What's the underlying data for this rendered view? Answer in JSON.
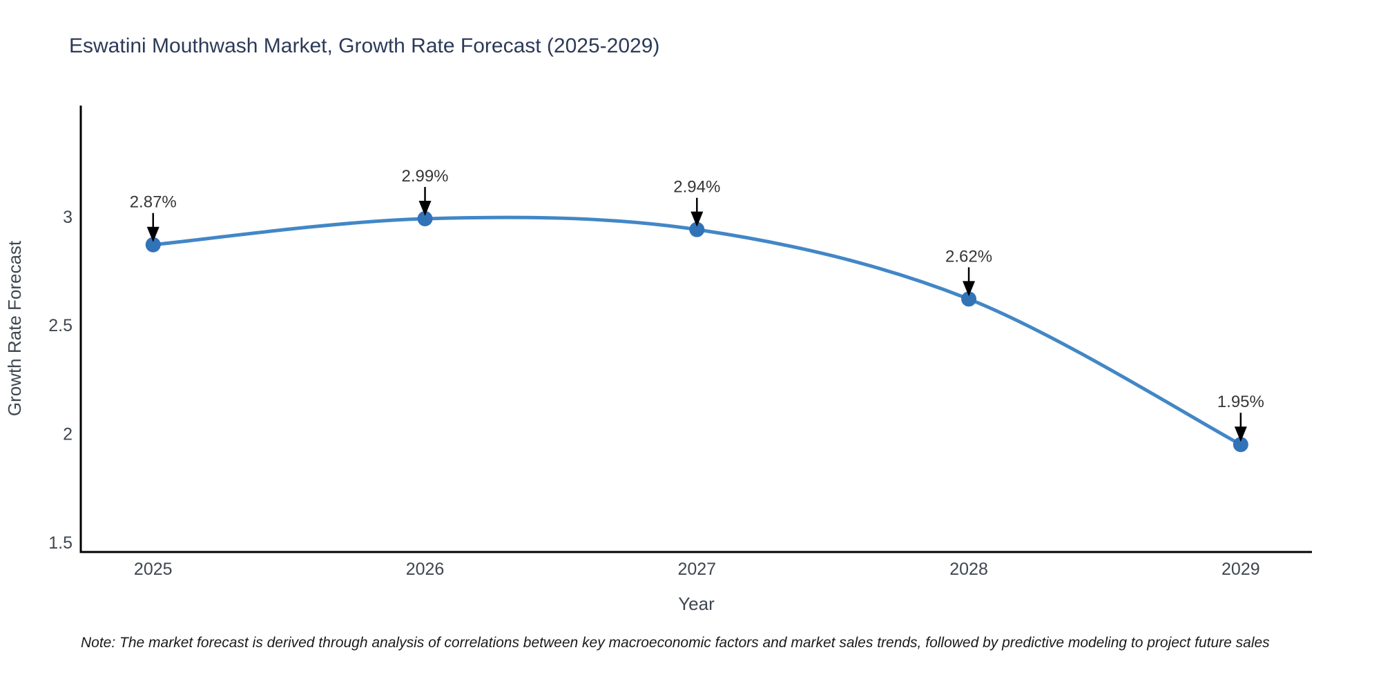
{
  "note": {
    "text": "Note: The market forecast is derived through analysis of correlations between key macroeconomic factors and market sales trends, followed by predictive modeling to project future sales"
  },
  "chart_data": {
    "type": "line",
    "title": "Eswatini Mouthwash Market, Growth Rate Forecast (2025-2029)",
    "xlabel": "Year",
    "ylabel": "Growth Rate Forecast",
    "x": [
      2025,
      2026,
      2027,
      2028,
      2029
    ],
    "series": [
      {
        "name": "Growth Rate Forecast",
        "values": [
          2.87,
          2.99,
          2.94,
          2.62,
          1.95
        ]
      }
    ],
    "point_labels": [
      "2.87%",
      "2.99%",
      "2.94%",
      "2.62%",
      "1.95%"
    ],
    "line_shape": "spline",
    "grid": false,
    "legend": false,
    "xlim": [
      2024.734,
      2029.262
    ],
    "ylim": [
      1.455,
      3.511
    ],
    "xticks": {
      "values": [
        2025,
        2026,
        2027,
        2028,
        2029
      ],
      "labels": [
        "2025",
        "2026",
        "2027",
        "2028",
        "2029"
      ]
    },
    "yticks": {
      "values": [
        1.5,
        2,
        2.5,
        3
      ],
      "labels": [
        "1.5",
        "2",
        "2.5",
        "3"
      ]
    },
    "colors": {
      "line": "#4287c6",
      "marker": "#3273b8",
      "axis": "#000000",
      "annotation": "#000000"
    }
  }
}
